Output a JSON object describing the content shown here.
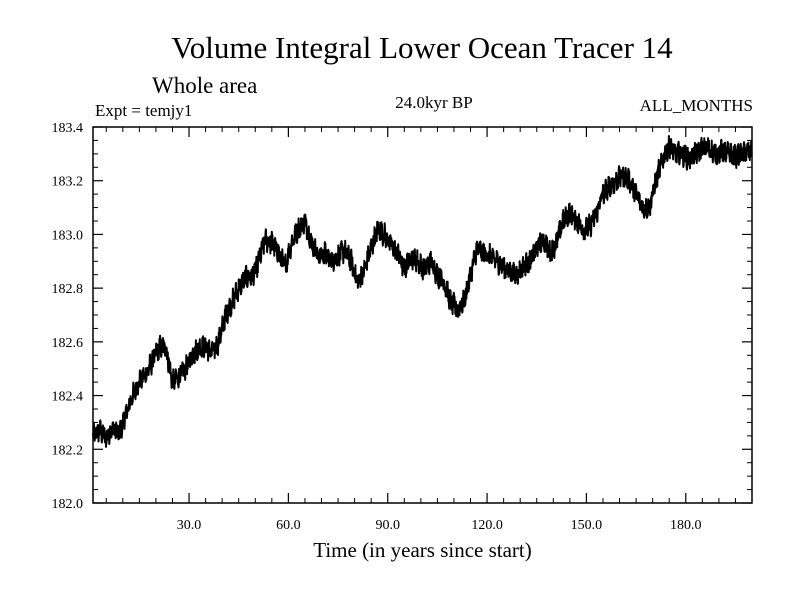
{
  "chart_data": {
    "type": "line",
    "title": "Volume Integral Lower Ocean Tracer 14",
    "subtitle": "Whole area",
    "experiment_label": "Expt = temjy1",
    "period_label": "24.0kyr BP",
    "months_label": "ALL_MONTHS",
    "xlabel": "Time (in years since start)",
    "ylabel": "",
    "xlim": [
      1,
      200
    ],
    "ylim": [
      182.0,
      183.4
    ],
    "x_ticks": [
      30,
      60,
      90,
      120,
      150,
      180
    ],
    "x_tick_labels": [
      "30.0",
      "60.0",
      "90.0",
      "120.0",
      "150.0",
      "180.0"
    ],
    "y_ticks": [
      182.0,
      182.2,
      182.4,
      182.6,
      182.8,
      183.0,
      183.2,
      183.4
    ],
    "y_tick_labels": [
      "182.0",
      "182.2",
      "182.4",
      "182.6",
      "182.8",
      "183.0",
      "183.2",
      "183.4"
    ],
    "grid": false,
    "line_color": "#000000",
    "series": [
      {
        "name": "Volume Integral Lower Ocean Tracer 14",
        "x": [
          1,
          3,
          5,
          7,
          9,
          11,
          13,
          15,
          17,
          19,
          21,
          23,
          25,
          27,
          29,
          31,
          33,
          35,
          37,
          39,
          41,
          43,
          45,
          47,
          49,
          51,
          53,
          55,
          57,
          59,
          61,
          63,
          65,
          67,
          69,
          71,
          73,
          75,
          77,
          79,
          81,
          83,
          85,
          87,
          89,
          91,
          93,
          95,
          97,
          99,
          101,
          103,
          105,
          107,
          109,
          111,
          113,
          115,
          117,
          119,
          121,
          123,
          125,
          127,
          129,
          131,
          133,
          135,
          137,
          139,
          141,
          143,
          145,
          147,
          149,
          151,
          153,
          155,
          157,
          159,
          161,
          163,
          165,
          167,
          169,
          171,
          173,
          175,
          177,
          179,
          181,
          183,
          185,
          187,
          189,
          191,
          193,
          195,
          197,
          199,
          200
        ],
        "values": [
          182.25,
          182.27,
          182.24,
          182.28,
          182.26,
          182.33,
          182.4,
          182.45,
          182.48,
          182.53,
          182.58,
          182.58,
          182.45,
          182.47,
          182.5,
          182.55,
          182.58,
          182.58,
          182.56,
          182.6,
          182.7,
          182.75,
          182.8,
          182.84,
          182.84,
          182.9,
          182.98,
          182.97,
          182.93,
          182.88,
          182.97,
          183.02,
          183.05,
          182.97,
          182.92,
          182.93,
          182.9,
          182.92,
          182.94,
          182.9,
          182.82,
          182.87,
          182.95,
          183.02,
          183.0,
          182.96,
          182.93,
          182.87,
          182.92,
          182.9,
          182.87,
          182.9,
          182.85,
          182.82,
          182.75,
          182.72,
          182.75,
          182.85,
          182.95,
          182.93,
          182.92,
          182.9,
          182.88,
          182.86,
          182.85,
          182.88,
          182.9,
          182.95,
          182.98,
          182.93,
          182.97,
          183.05,
          183.08,
          183.05,
          183.02,
          183.03,
          183.08,
          183.15,
          183.18,
          183.2,
          183.22,
          183.2,
          183.15,
          183.1,
          183.1,
          183.2,
          183.28,
          183.33,
          183.3,
          183.3,
          183.28,
          183.3,
          183.32,
          183.32,
          183.3,
          183.31,
          183.3,
          183.29,
          183.3,
          183.31,
          183.3
        ]
      }
    ]
  }
}
